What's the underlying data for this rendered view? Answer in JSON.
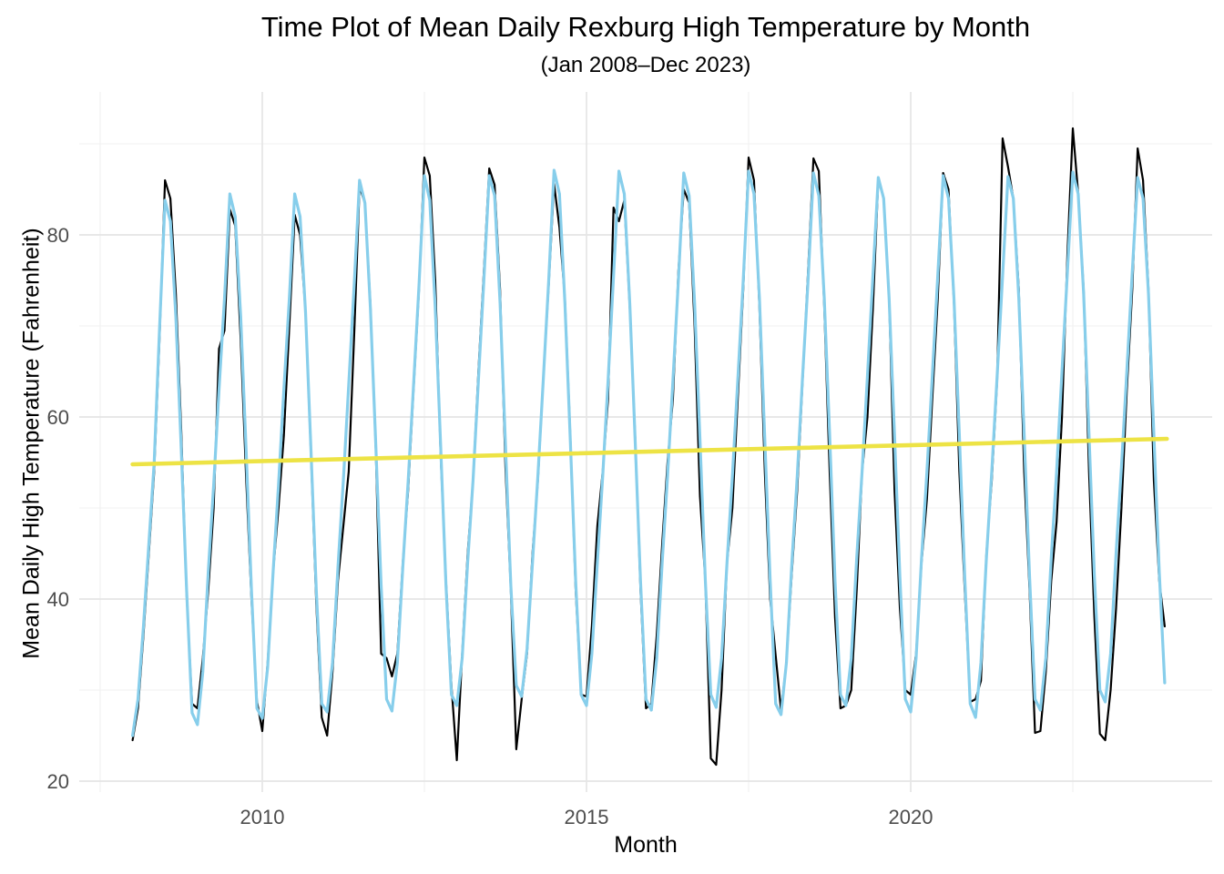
{
  "chart": {
    "title": "Time Plot of Mean Daily Rexburg High Temperature by Month",
    "subtitle": "(Jan 2008–Dec 2023)",
    "xlabel": "Month",
    "ylabel": "Mean Daily High Temperature (Fahrenheit)"
  },
  "chart_data": {
    "type": "line",
    "title": "Time Plot of Mean Daily Rexburg High Temperature by Month",
    "subtitle": "(Jan 2008–Dec 2023)",
    "xlabel": "Month",
    "ylabel": "Mean Daily High Temperature (Fahrenheit)",
    "x_start": "2008-01",
    "x_end": "2023-12",
    "x_ticks": [
      2010,
      2015,
      2020
    ],
    "x_minor_ticks": [
      2007.5,
      2012.5,
      2017.5,
      2022.5
    ],
    "y_ticks": [
      20,
      40,
      60,
      80
    ],
    "y_minor_ticks": [
      30,
      50,
      70,
      90
    ],
    "xlim": [
      2007.4,
      2024.5
    ],
    "ylim": [
      18,
      96
    ],
    "grid": "major and minor, light gray on white panel",
    "legend_position": "none",
    "colors": {
      "observed": "#000000",
      "fitted": "#87CEEB",
      "trend": "#EDE345",
      "grid_major": "#E5E5E5",
      "grid_minor": "#F0F0F0",
      "tick_text": "#4D4D4D"
    },
    "series": [
      {
        "name": "observed-monthly-mean-high",
        "color": "#000000",
        "width": 2.2,
        "years": [
          2008,
          2009,
          2010,
          2011,
          2012,
          2013,
          2014,
          2015,
          2016,
          2017,
          2018,
          2019,
          2020,
          2021,
          2022,
          2023
        ],
        "values_by_year": [
          [
            24.5,
            28,
            36,
            45,
            54,
            69,
            86,
            84,
            73.5,
            58.5,
            40.5,
            28.5
          ],
          [
            28,
            33.5,
            41,
            50,
            67.5,
            69.5,
            82.8,
            81,
            68.5,
            53.5,
            40,
            28.8
          ],
          [
            25.5,
            33,
            43,
            50,
            58,
            70,
            82.2,
            80,
            71.5,
            56,
            39.5,
            27
          ],
          [
            25,
            32,
            42,
            48,
            54,
            69,
            85.3,
            83.5,
            72.5,
            56.5,
            34,
            33.5
          ],
          [
            31.5,
            34,
            44,
            52,
            63,
            74,
            88.5,
            86.5,
            75,
            56,
            42,
            30.5
          ],
          [
            22.3,
            34,
            45,
            53,
            65,
            76,
            87.3,
            85.5,
            74,
            54.5,
            41,
            23.5
          ],
          [
            29,
            34,
            45,
            53,
            64,
            74.5,
            85.6,
            80.8,
            73,
            58,
            41,
            29.5
          ],
          [
            29.3,
            37,
            48,
            54,
            62,
            83,
            81.5,
            83.8,
            72,
            58,
            41,
            28
          ],
          [
            28.5,
            36,
            46,
            55,
            62,
            76,
            85,
            83.5,
            70,
            51.3,
            42,
            22.5
          ],
          [
            21.8,
            30,
            44,
            50,
            62,
            74,
            88.5,
            86,
            72,
            54,
            40,
            33.8
          ],
          [
            27.8,
            33,
            43,
            52,
            64,
            76,
            88.4,
            87,
            72,
            54,
            38,
            28
          ],
          [
            28.3,
            30,
            41,
            54,
            60,
            72,
            86.1,
            84,
            73,
            52,
            39,
            30
          ],
          [
            29.5,
            34,
            44,
            51,
            62,
            73,
            86.8,
            85,
            72.5,
            54,
            41,
            28.7
          ],
          [
            29,
            31,
            45,
            53,
            64,
            90.6,
            87.5,
            84,
            74,
            54,
            41,
            25.3
          ],
          [
            25.5,
            32,
            42,
            48.5,
            60,
            78,
            91.7,
            84.5,
            74,
            54,
            38,
            25.2
          ],
          [
            24.5,
            30,
            39,
            50,
            63,
            74,
            89.5,
            86,
            74,
            53,
            42,
            37
          ]
        ]
      },
      {
        "name": "seasonal-fitted",
        "color": "#87CEEB",
        "width": 3.2,
        "years": [
          2008,
          2009,
          2010,
          2011,
          2012,
          2013,
          2014,
          2015,
          2016,
          2017,
          2018,
          2019,
          2020,
          2021,
          2022,
          2023
        ],
        "values_by_year": [
          [
            25,
            29,
            37,
            46,
            55,
            70,
            83.8,
            81.5,
            71,
            56.5,
            41,
            27.5
          ],
          [
            26.2,
            32,
            43,
            52.5,
            63,
            73,
            84.5,
            82,
            71,
            56.5,
            41,
            28
          ],
          [
            26.9,
            32.5,
            43,
            52.5,
            63,
            73,
            84.5,
            82,
            71.5,
            56.5,
            41,
            28.5
          ],
          [
            27.6,
            33,
            43.5,
            53,
            63.5,
            74.5,
            86,
            83.5,
            72,
            57,
            41.5,
            29
          ],
          [
            27.7,
            33,
            43.5,
            53,
            63.5,
            74.5,
            86.5,
            83.8,
            72,
            57,
            41.5,
            29.5
          ],
          [
            28.3,
            33.5,
            44,
            53,
            64,
            75,
            86.5,
            84.3,
            72.5,
            57,
            41.5,
            30.5
          ],
          [
            29.3,
            34.5,
            44,
            53.5,
            64,
            75,
            87.1,
            84.5,
            72.5,
            57.5,
            42,
            29.5
          ],
          [
            28.3,
            34,
            44,
            53.5,
            64,
            75.5,
            87,
            84.5,
            72.5,
            57.5,
            42,
            29
          ],
          [
            27.8,
            33.5,
            44,
            53.5,
            64,
            75,
            86.8,
            84.3,
            72.5,
            57.5,
            42,
            29.5
          ],
          [
            28.1,
            33.5,
            44,
            53.5,
            64,
            75,
            87,
            84.5,
            73,
            57.5,
            42,
            28.5
          ],
          [
            27.3,
            33,
            44,
            53.5,
            64.5,
            75,
            86.8,
            84.3,
            73,
            58,
            42,
            29.5
          ],
          [
            28.3,
            33.5,
            44.5,
            54,
            64.5,
            75.5,
            86.3,
            84,
            73,
            58,
            42.5,
            29
          ],
          [
            27.6,
            33.5,
            44.5,
            54,
            64.5,
            75.5,
            86.5,
            84,
            73,
            58,
            42.5,
            28.5
          ],
          [
            27,
            33,
            44.5,
            54,
            64.5,
            75.5,
            86.4,
            84,
            73,
            58,
            42.5,
            29
          ],
          [
            27.8,
            33.5,
            44.5,
            54,
            65,
            76,
            86.9,
            84.5,
            73.5,
            58,
            42.5,
            30
          ],
          [
            28.7,
            34,
            45,
            54.5,
            65,
            76,
            86.3,
            84,
            73.5,
            58,
            43,
            30.8
          ]
        ]
      }
    ],
    "trend": {
      "name": "linear-trend",
      "color": "#EDE345",
      "width": 4.6,
      "x": [
        2008.0,
        2023.95
      ],
      "y": [
        54.8,
        57.6
      ]
    }
  }
}
